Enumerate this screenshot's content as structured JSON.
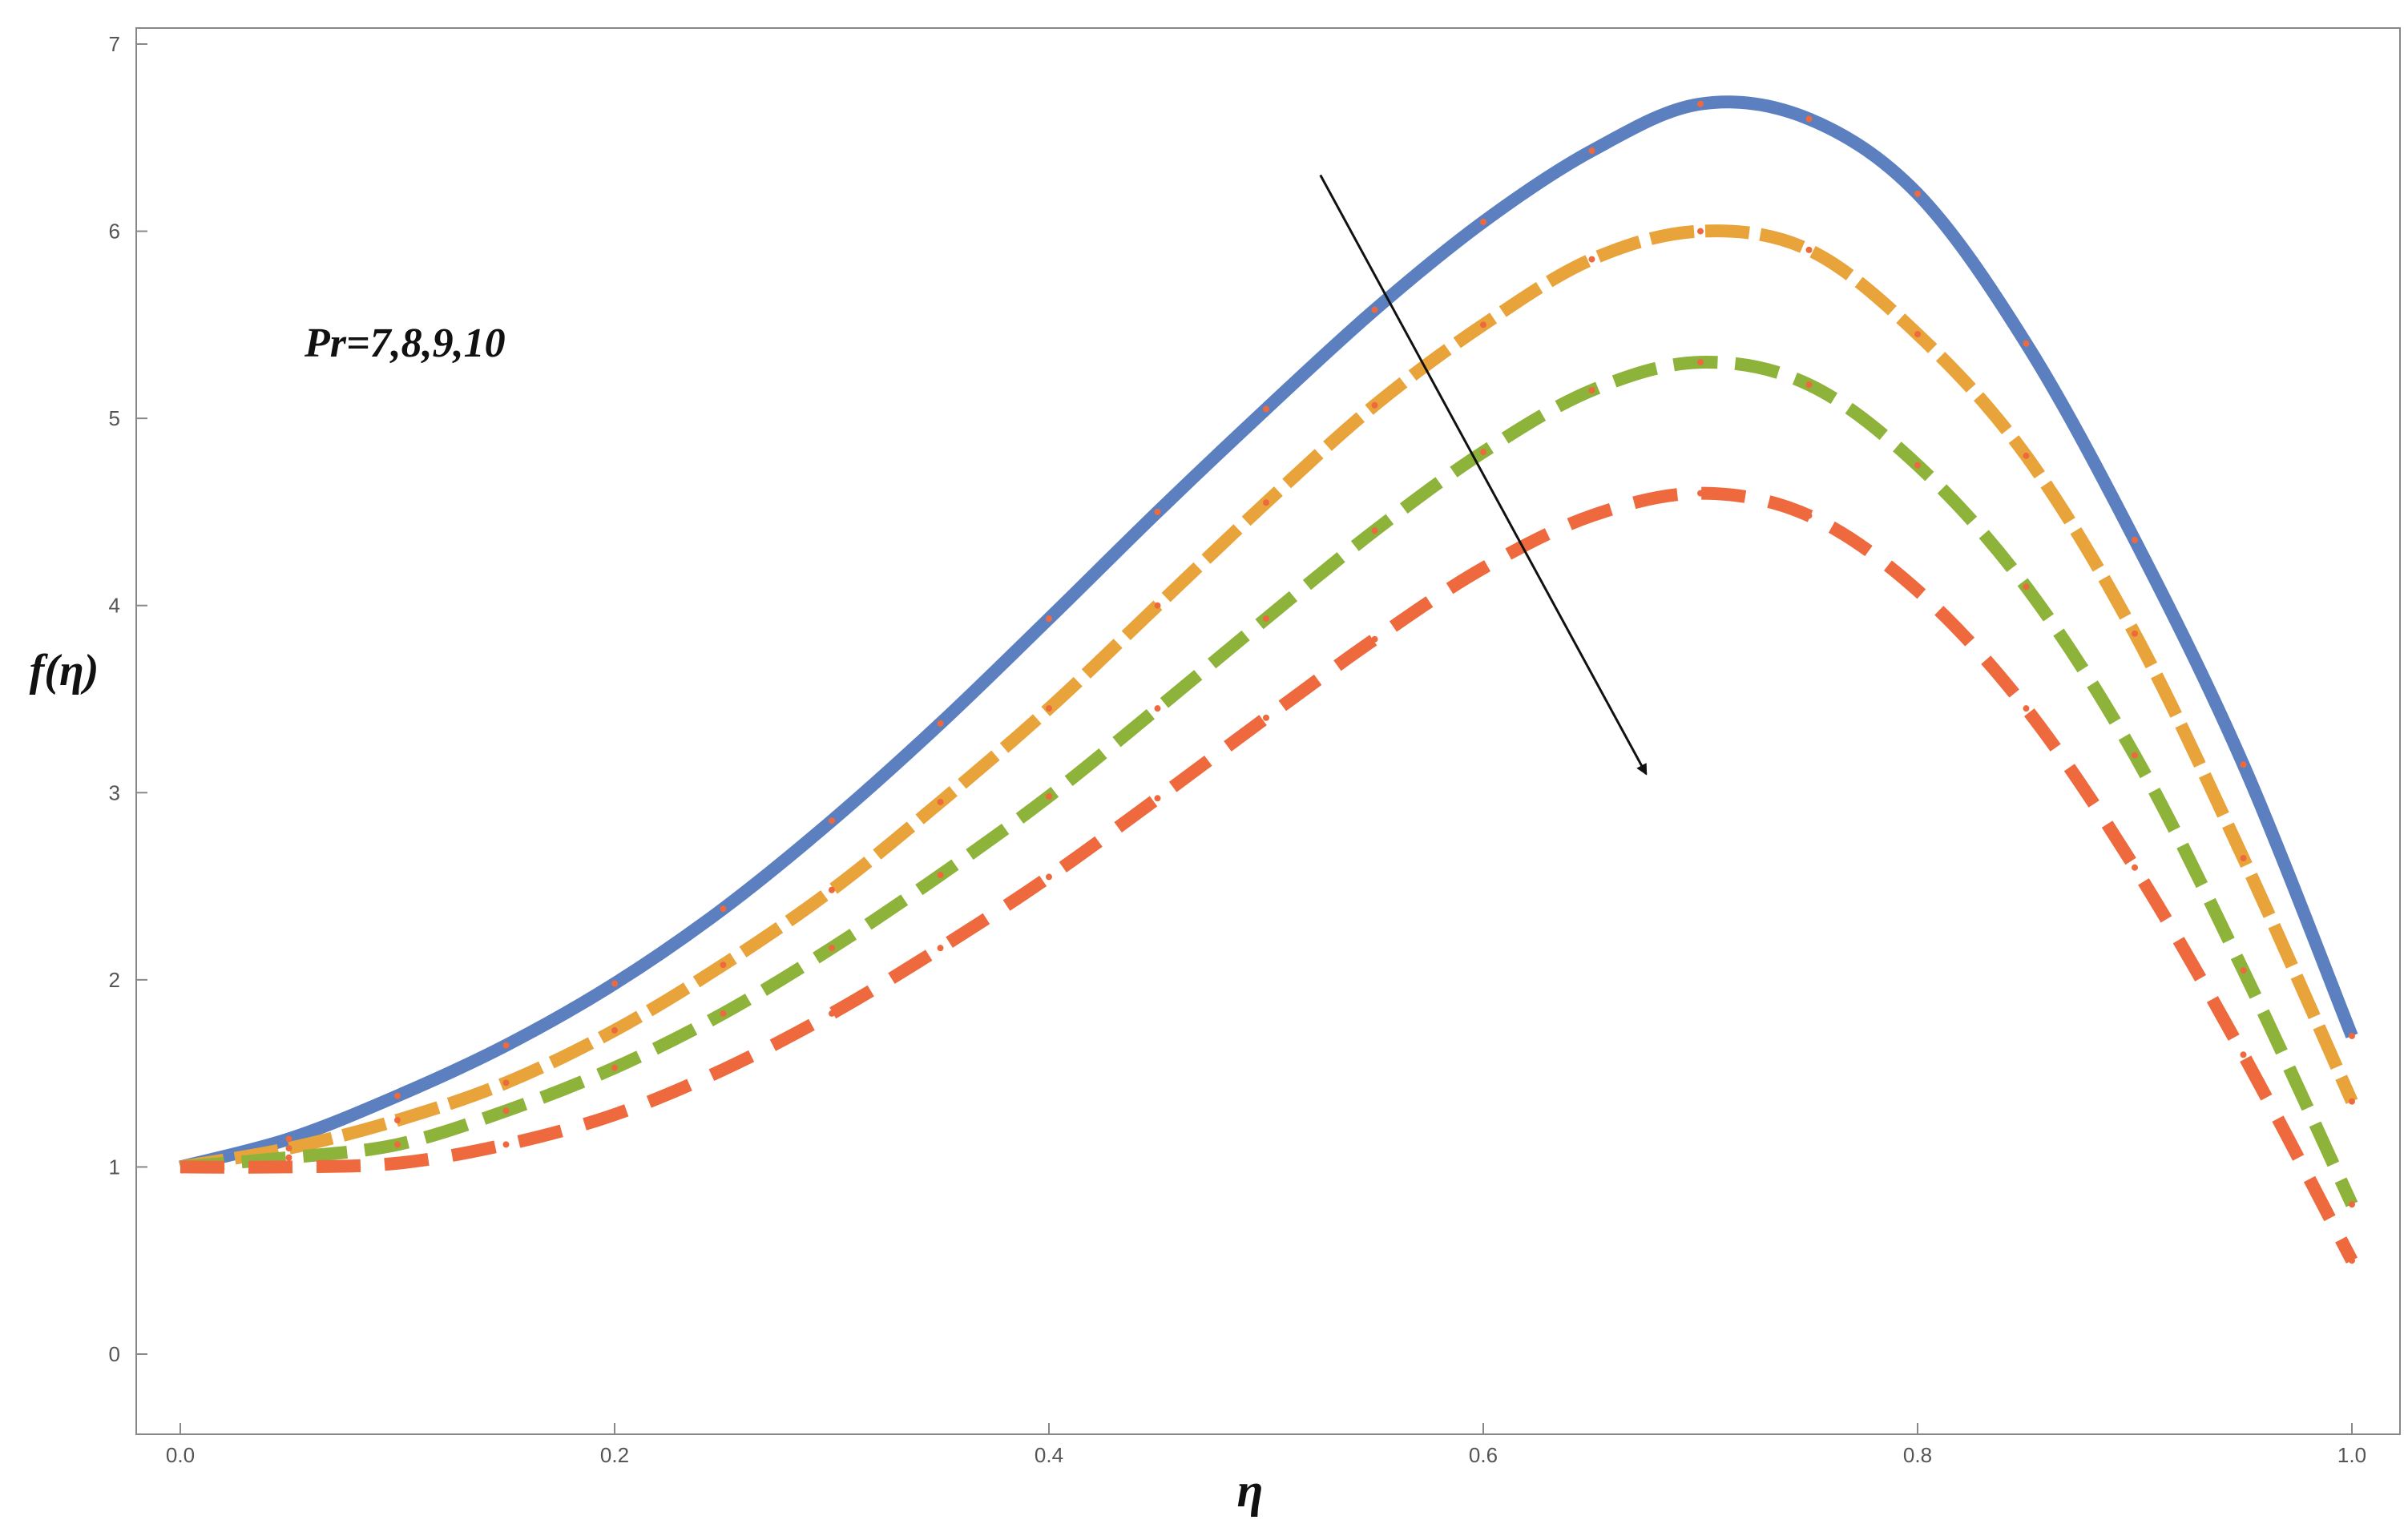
{
  "chart_data": {
    "type": "line",
    "title": "",
    "xlabel": "η",
    "ylabel": "f(η)",
    "xlim": [
      0.0,
      1.0
    ],
    "ylim": [
      -0.3,
      7.0
    ],
    "x_ticks": [
      "0.0",
      "0.2",
      "0.4",
      "0.6",
      "0.8",
      "1.0"
    ],
    "y_ticks": [
      "0",
      "1",
      "2",
      "3",
      "4",
      "5",
      "6",
      "7"
    ],
    "grid": false,
    "legend": null,
    "annotation": "Pr=7,8,9,10",
    "arrow": {
      "from": [
        0.525,
        6.3
      ],
      "to": [
        0.675,
        3.1
      ],
      "meaning": "direction of increasing Pr"
    },
    "x": [
      0.0,
      0.05,
      0.1,
      0.15,
      0.2,
      0.25,
      0.3,
      0.35,
      0.4,
      0.45,
      0.5,
      0.55,
      0.6,
      0.65,
      0.7,
      0.75,
      0.8,
      0.85,
      0.9,
      0.95,
      1.0
    ],
    "series": [
      {
        "color": "#5b7fbf",
        "style": "solid",
        "values": [
          1.0,
          1.15,
          1.38,
          1.65,
          1.98,
          2.38,
          2.85,
          3.37,
          3.93,
          4.5,
          5.05,
          5.58,
          6.05,
          6.43,
          6.68,
          6.6,
          6.2,
          5.4,
          4.35,
          3.15,
          1.7
        ]
      },
      {
        "color": "#e8a33a",
        "style": "dashed",
        "values": [
          1.0,
          1.1,
          1.25,
          1.45,
          1.73,
          2.08,
          2.48,
          2.95,
          3.45,
          4.0,
          4.55,
          5.07,
          5.5,
          5.85,
          6.0,
          5.9,
          5.45,
          4.8,
          3.85,
          2.65,
          1.35
        ]
      },
      {
        "color": "#8db33a",
        "style": "dashed",
        "values": [
          1.0,
          1.05,
          1.12,
          1.3,
          1.53,
          1.82,
          2.17,
          2.56,
          2.98,
          3.45,
          3.93,
          4.4,
          4.82,
          5.15,
          5.3,
          5.18,
          4.75,
          4.1,
          3.2,
          2.05,
          0.8
        ]
      },
      {
        "color": "#ee6a3e",
        "style": "dashed",
        "values": [
          1.0,
          1.0,
          1.02,
          1.12,
          1.28,
          1.52,
          1.82,
          2.17,
          2.55,
          2.97,
          3.4,
          3.82,
          4.2,
          4.48,
          4.6,
          4.48,
          4.08,
          3.45,
          2.6,
          1.6,
          0.5
        ]
      }
    ],
    "markers": {
      "color": "#ee6a3e",
      "x_step": 0.0476
    }
  }
}
